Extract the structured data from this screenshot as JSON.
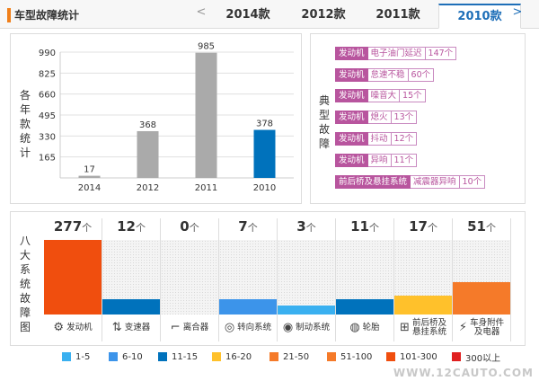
{
  "header": {
    "title": "车型故障统计",
    "prev": "<",
    "next": ">",
    "tabs": [
      {
        "label": "2014款",
        "active": false
      },
      {
        "label": "2012款",
        "active": false
      },
      {
        "label": "2011款",
        "active": false
      },
      {
        "label": "2010款",
        "active": true
      }
    ]
  },
  "yearly_panel": {
    "label_chars": [
      "各",
      "年",
      "款",
      "统",
      "计"
    ]
  },
  "chart_data": {
    "type": "bar",
    "categories": [
      "2014",
      "2012",
      "2011",
      "2010"
    ],
    "values": [
      17,
      368,
      985,
      378
    ],
    "value_labels": [
      "17",
      "368",
      "985",
      "378"
    ],
    "colors": [
      "#aaaaaa",
      "#aaaaaa",
      "#aaaaaa",
      "#0072bc"
    ],
    "yticks": [
      "990",
      "825",
      "660",
      "495",
      "330",
      "165"
    ],
    "ylim": [
      0,
      990
    ]
  },
  "typical_panel": {
    "label_chars": [
      "典",
      "型",
      "故",
      "障"
    ],
    "items": [
      {
        "category": "发动机",
        "fault": "电子油门延迟",
        "count": "147个"
      },
      {
        "category": "发动机",
        "fault": "怠速不稳",
        "count": "60个"
      },
      {
        "category": "发动机",
        "fault": "噪音大",
        "count": "15个"
      },
      {
        "category": "发动机",
        "fault": "熄火",
        "count": "13个"
      },
      {
        "category": "发动机",
        "fault": "抖动",
        "count": "12个"
      },
      {
        "category": "发动机",
        "fault": "异响",
        "count": "11个"
      },
      {
        "category": "前后桥及悬挂系统",
        "fault": "减震器异响",
        "count": "10个"
      }
    ]
  },
  "system_panel": {
    "label_chars": [
      "八",
      "大",
      "系",
      "统",
      "故",
      "障",
      "图"
    ],
    "unit": "个",
    "systems": [
      {
        "count": "277",
        "value": 277,
        "name": "发动机",
        "icon": "engine-icon",
        "glyph": "⚙",
        "color": "#f04e0e"
      },
      {
        "count": "12",
        "value": 12,
        "name": "变速器",
        "icon": "gear-shift-icon",
        "glyph": "⇅",
        "color": "#0072bc"
      },
      {
        "count": "0",
        "value": 0,
        "name": "离合器",
        "icon": "clutch-pedal-icon",
        "glyph": "⌐",
        "color": "#f4f4f4"
      },
      {
        "count": "7",
        "value": 7,
        "name": "转向系统",
        "icon": "steering-wheel-icon",
        "glyph": "◎",
        "color": "#3c94ea"
      },
      {
        "count": "3",
        "value": 3,
        "name": "制动系统",
        "icon": "brake-disc-icon",
        "glyph": "◉",
        "color": "#3ab0f0"
      },
      {
        "count": "11",
        "value": 11,
        "name": "轮胎",
        "icon": "tire-icon",
        "glyph": "◍",
        "color": "#0072bc"
      },
      {
        "count": "17",
        "value": 17,
        "name": "前后桥及\n悬挂系统",
        "icon": "suspension-icon",
        "glyph": "⊞",
        "color": "#ffc12b"
      },
      {
        "count": "51",
        "value": 51,
        "name": "车身附件\n及电器",
        "icon": "battery-icon",
        "glyph": "⚡",
        "color": "#f57a29"
      }
    ]
  },
  "legend": [
    {
      "label": "1-5",
      "color": "#3ab0f0"
    },
    {
      "label": "6-10",
      "color": "#3c94ea"
    },
    {
      "label": "11-15",
      "color": "#0072bc"
    },
    {
      "label": "16-20",
      "color": "#ffc12b"
    },
    {
      "label": "21-50",
      "color": "#f57a29"
    },
    {
      "label": "51-100",
      "color": "#f57a29"
    },
    {
      "label": "101-300",
      "color": "#f04e0e"
    },
    {
      "label": "300以上",
      "color": "#e02020"
    }
  ],
  "watermark": "WWW.12CAUTO.COM"
}
